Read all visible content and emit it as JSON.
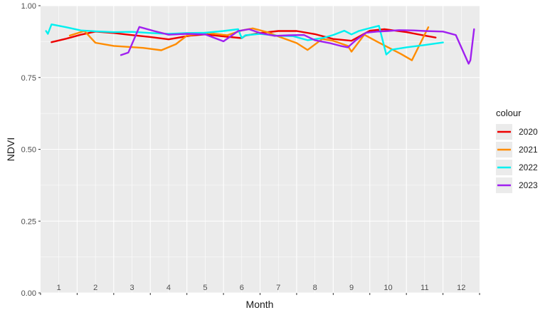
{
  "chart_data": {
    "type": "line",
    "xlabel": "Month",
    "ylabel": "NDVI",
    "x_range": [
      0.5,
      12.5
    ],
    "ylim": [
      0,
      1
    ],
    "y_ticks": [
      0.0,
      0.25,
      0.5,
      0.75,
      1.0
    ],
    "y_tick_labels": [
      "0.00",
      "0.25",
      "0.50",
      "0.75",
      "1.00"
    ],
    "month_labels": [
      "1",
      "2",
      "3",
      "4",
      "5",
      "6",
      "7",
      "8",
      "9",
      "10",
      "11",
      "12"
    ],
    "grid": true,
    "legend": {
      "title": "colour",
      "position": "right"
    },
    "series": [
      {
        "name": "2020",
        "color": "#ee0000",
        "points": [
          [
            0.8,
            0.873
          ],
          [
            1.2,
            0.885
          ],
          [
            1.6,
            0.899
          ],
          [
            2.0,
            0.91
          ],
          [
            2.5,
            0.905
          ],
          [
            2.9,
            0.899
          ],
          [
            3.5,
            0.891
          ],
          [
            4.0,
            0.883
          ],
          [
            4.6,
            0.896
          ],
          [
            5.0,
            0.9
          ],
          [
            5.5,
            0.893
          ],
          [
            6.0,
            0.887
          ],
          [
            6.1,
            0.896
          ],
          [
            6.5,
            0.905
          ],
          [
            7.0,
            0.912
          ],
          [
            7.5,
            0.912
          ],
          [
            8.0,
            0.901
          ],
          [
            8.5,
            0.884
          ],
          [
            9.0,
            0.878
          ],
          [
            9.5,
            0.913
          ],
          [
            9.9,
            0.918
          ],
          [
            10.5,
            0.908
          ],
          [
            11.0,
            0.896
          ],
          [
            11.3,
            0.889
          ]
        ]
      },
      {
        "name": "2021",
        "color": "#ff8c00",
        "points": [
          [
            1.3,
            0.896
          ],
          [
            1.7,
            0.912
          ],
          [
            2.0,
            0.871
          ],
          [
            2.5,
            0.86
          ],
          [
            3.3,
            0.853
          ],
          [
            3.8,
            0.845
          ],
          [
            4.2,
            0.866
          ],
          [
            4.5,
            0.896
          ],
          [
            5.0,
            0.906
          ],
          [
            5.6,
            0.897
          ],
          [
            6.0,
            0.914
          ],
          [
            6.3,
            0.921
          ],
          [
            6.7,
            0.908
          ],
          [
            7.0,
            0.893
          ],
          [
            7.5,
            0.87
          ],
          [
            7.8,
            0.846
          ],
          [
            8.2,
            0.884
          ],
          [
            8.5,
            0.878
          ],
          [
            8.9,
            0.86
          ],
          [
            9.0,
            0.84
          ],
          [
            9.35,
            0.899
          ],
          [
            9.7,
            0.875
          ],
          [
            10.0,
            0.855
          ],
          [
            10.35,
            0.832
          ],
          [
            10.65,
            0.81
          ],
          [
            11.1,
            0.925
          ]
        ]
      },
      {
        "name": "2022",
        "color": "#00f0f0",
        "points": [
          [
            0.65,
            0.912
          ],
          [
            0.7,
            0.902
          ],
          [
            0.8,
            0.935
          ],
          [
            1.2,
            0.925
          ],
          [
            1.6,
            0.914
          ],
          [
            2.0,
            0.911
          ],
          [
            2.5,
            0.908
          ],
          [
            3.0,
            0.909
          ],
          [
            3.5,
            0.905
          ],
          [
            4.0,
            0.902
          ],
          [
            4.5,
            0.905
          ],
          [
            5.0,
            0.906
          ],
          [
            5.5,
            0.912
          ],
          [
            5.9,
            0.918
          ],
          [
            6.0,
            0.887
          ],
          [
            6.1,
            0.897
          ],
          [
            6.5,
            0.902
          ],
          [
            7.0,
            0.895
          ],
          [
            7.4,
            0.894
          ],
          [
            7.8,
            0.88
          ],
          [
            8.2,
            0.887
          ],
          [
            8.5,
            0.898
          ],
          [
            8.8,
            0.913
          ],
          [
            9.0,
            0.9
          ],
          [
            9.2,
            0.912
          ],
          [
            9.5,
            0.922
          ],
          [
            9.75,
            0.93
          ],
          [
            9.95,
            0.83
          ],
          [
            10.1,
            0.847
          ],
          [
            10.5,
            0.855
          ],
          [
            11.0,
            0.863
          ],
          [
            11.5,
            0.872
          ]
        ]
      },
      {
        "name": "2023",
        "color": "#a020f0",
        "points": [
          [
            2.7,
            0.828
          ],
          [
            2.9,
            0.837
          ],
          [
            3.2,
            0.926
          ],
          [
            3.6,
            0.912
          ],
          [
            4.0,
            0.899
          ],
          [
            4.5,
            0.902
          ],
          [
            5.0,
            0.9
          ],
          [
            5.5,
            0.876
          ],
          [
            5.9,
            0.912
          ],
          [
            6.2,
            0.918
          ],
          [
            6.5,
            0.905
          ],
          [
            6.9,
            0.895
          ],
          [
            7.3,
            0.897
          ],
          [
            7.7,
            0.898
          ],
          [
            8.0,
            0.88
          ],
          [
            8.4,
            0.87
          ],
          [
            8.7,
            0.86
          ],
          [
            8.9,
            0.855
          ],
          [
            9.1,
            0.878
          ],
          [
            9.4,
            0.906
          ],
          [
            9.7,
            0.91
          ],
          [
            10.0,
            0.912
          ],
          [
            10.3,
            0.915
          ],
          [
            10.7,
            0.914
          ],
          [
            11.0,
            0.912
          ],
          [
            11.5,
            0.91
          ],
          [
            11.85,
            0.898
          ],
          [
            12.2,
            0.798
          ],
          [
            12.25,
            0.81
          ],
          [
            12.35,
            0.918
          ]
        ]
      }
    ]
  }
}
